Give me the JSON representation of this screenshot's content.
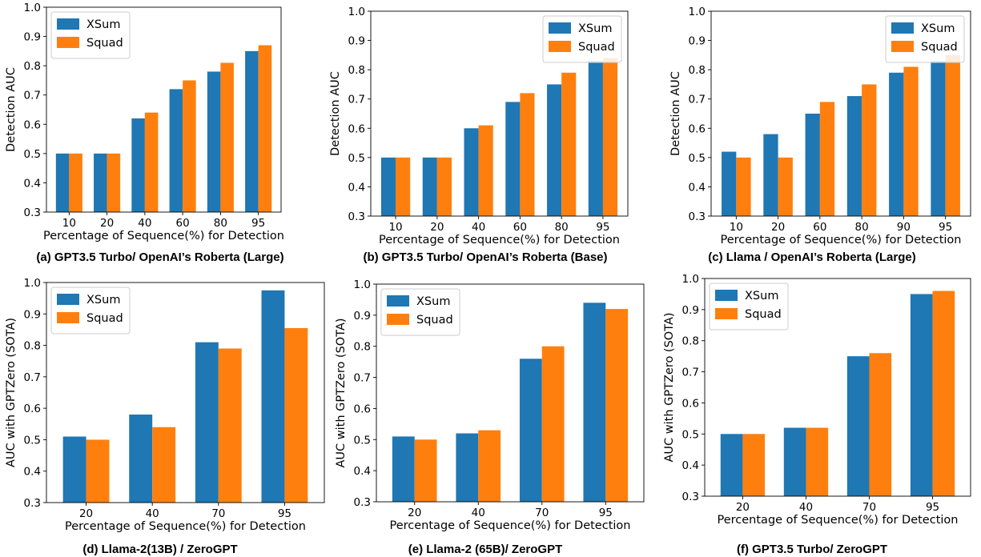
{
  "colors": {
    "xsum": "#1f77b4",
    "squad": "#ff7f0e"
  },
  "chart_data": [
    {
      "type": "bar",
      "caption": "(a) GPT3.5 Turbo/ OpenAI’s Roberta (Large)",
      "categories": [
        "10",
        "20",
        "40",
        "60",
        "80",
        "95"
      ],
      "series": [
        {
          "name": "XSum",
          "values": [
            0.5,
            0.5,
            0.62,
            0.72,
            0.78,
            0.85
          ]
        },
        {
          "name": "Squad",
          "values": [
            0.5,
            0.5,
            0.64,
            0.75,
            0.81,
            0.87
          ]
        }
      ],
      "xlabel": "Percentage of Sequence(%) for Detection",
      "ylabel": "Detection AUC",
      "ylim": [
        0.3,
        1.0
      ],
      "yticks": [
        "0.3",
        "0.4",
        "0.5",
        "0.6",
        "0.7",
        "0.8",
        "0.9",
        "1.0"
      ],
      "legend": "top-left",
      "grid": false
    },
    {
      "type": "bar",
      "caption": "(b) GPT3.5 Turbo/ OpenAI’s Roberta (Base)",
      "categories": [
        "10",
        "20",
        "40",
        "60",
        "80",
        "95"
      ],
      "series": [
        {
          "name": "XSum",
          "values": [
            0.5,
            0.5,
            0.6,
            0.69,
            0.75,
            0.83
          ]
        },
        {
          "name": "Squad",
          "values": [
            0.5,
            0.5,
            0.61,
            0.72,
            0.79,
            0.84
          ]
        }
      ],
      "xlabel": "Percentage of Sequence(%) for Detection",
      "ylabel": "Detection AUC",
      "ylim": [
        0.3,
        1.0
      ],
      "yticks": [
        "0.3",
        "0.4",
        "0.5",
        "0.6",
        "0.7",
        "0.8",
        "0.9",
        "1.0"
      ],
      "legend": "top-right",
      "grid": false
    },
    {
      "type": "bar",
      "caption": "(c) Llama / OpenAI’s Roberta (Large)",
      "categories": [
        "10",
        "20",
        "60",
        "80",
        "90",
        "95"
      ],
      "series": [
        {
          "name": "XSum",
          "values": [
            0.52,
            0.58,
            0.65,
            0.71,
            0.79,
            0.83
          ]
        },
        {
          "name": "Squad",
          "values": [
            0.5,
            0.5,
            0.69,
            0.75,
            0.81,
            0.85
          ]
        }
      ],
      "xlabel": "Percentage of Sequence(%) for Detection",
      "ylabel": "Detection AUC",
      "ylim": [
        0.3,
        1.0
      ],
      "yticks": [
        "0.3",
        "0.4",
        "0.5",
        "0.6",
        "0.7",
        "0.8",
        "0.9",
        "1.0"
      ],
      "legend": "top-right",
      "grid": false
    },
    {
      "type": "bar",
      "caption": "(d) Llama-2(13B) / ZeroGPT",
      "categories": [
        "20",
        "40",
        "70",
        "95"
      ],
      "series": [
        {
          "name": "XSum",
          "values": [
            0.51,
            0.58,
            0.81,
            0.975
          ]
        },
        {
          "name": "Squad",
          "values": [
            0.5,
            0.54,
            0.79,
            0.855
          ]
        }
      ],
      "xlabel": "Percentage of Sequence(%) for Detection",
      "ylabel": "AUC with GPTZero (SOTA)",
      "ylim": [
        0.3,
        1.0
      ],
      "yticks": [
        "0.3",
        "0.4",
        "0.5",
        "0.6",
        "0.7",
        "0.8",
        "0.9",
        "1.0"
      ],
      "legend": "top-left",
      "grid": false
    },
    {
      "type": "bar",
      "caption": "(e) Llama-2 (65B)/ ZeroGPT",
      "categories": [
        "20",
        "40",
        "70",
        "95"
      ],
      "series": [
        {
          "name": "XSum",
          "values": [
            0.51,
            0.52,
            0.76,
            0.94
          ]
        },
        {
          "name": "Squad",
          "values": [
            0.5,
            0.53,
            0.8,
            0.92
          ]
        }
      ],
      "xlabel": "Percentage of Sequence(%) for Detection",
      "ylabel": "AUC with GPTZero (SOTA)",
      "ylim": [
        0.3,
        1.0
      ],
      "yticks": [
        "0.3",
        "0.4",
        "0.5",
        "0.6",
        "0.7",
        "0.8",
        "0.9",
        "1.0"
      ],
      "legend": "top-left",
      "grid": false
    },
    {
      "type": "bar",
      "caption": "(f) GPT3.5 Turbo/ ZeroGPT",
      "categories": [
        "20",
        "40",
        "70",
        "95"
      ],
      "series": [
        {
          "name": "XSum",
          "values": [
            0.5,
            0.52,
            0.75,
            0.95
          ]
        },
        {
          "name": "Squad",
          "values": [
            0.5,
            0.52,
            0.76,
            0.96
          ]
        }
      ],
      "xlabel": "Percentage of Sequence(%) for Detection",
      "ylabel": "AUC with GPTZero (SOTA)",
      "ylim": [
        0.3,
        1.0
      ],
      "yticks": [
        "0.3",
        "0.4",
        "0.5",
        "0.6",
        "0.7",
        "0.8",
        "0.9",
        "1.0"
      ],
      "legend": "top-left",
      "grid": false
    }
  ]
}
